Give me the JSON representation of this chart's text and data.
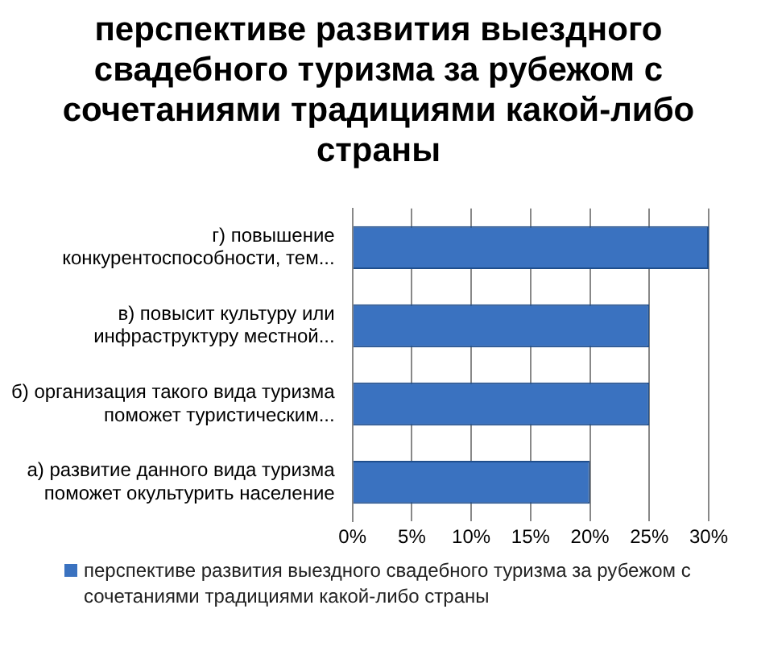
{
  "chart_data": {
    "type": "bar",
    "orientation": "horizontal",
    "title": "перспективе развития выездного свадебного туризма за рубежом с сочетаниями  традициями какой-либо страны",
    "categories": [
      "г) повышение конкурентоспособности, тем...",
      "в) повысит культуру или инфраструктуру местной...",
      "б) организация такого вида туризма поможет туристическим...",
      "а) развитие данного вида туризма поможет окультурить население"
    ],
    "series": [
      {
        "name": "перспективе развития выездного свадебного туризма за рубежом с сочетаниями  традициями какой-либо страны",
        "color": "#3a72c0",
        "values": [
          30,
          25,
          25,
          20
        ]
      }
    ],
    "xlim": [
      0,
      30
    ],
    "xticks": [
      {
        "value": 0,
        "label": "0%"
      },
      {
        "value": 5,
        "label": "5%"
      },
      {
        "value": 10,
        "label": "10%"
      },
      {
        "value": 15,
        "label": "15%"
      },
      {
        "value": 20,
        "label": "20%"
      },
      {
        "value": 25,
        "label": "25%"
      },
      {
        "value": 30,
        "label": "30%"
      }
    ],
    "grid": "x",
    "legend": "bottom"
  }
}
